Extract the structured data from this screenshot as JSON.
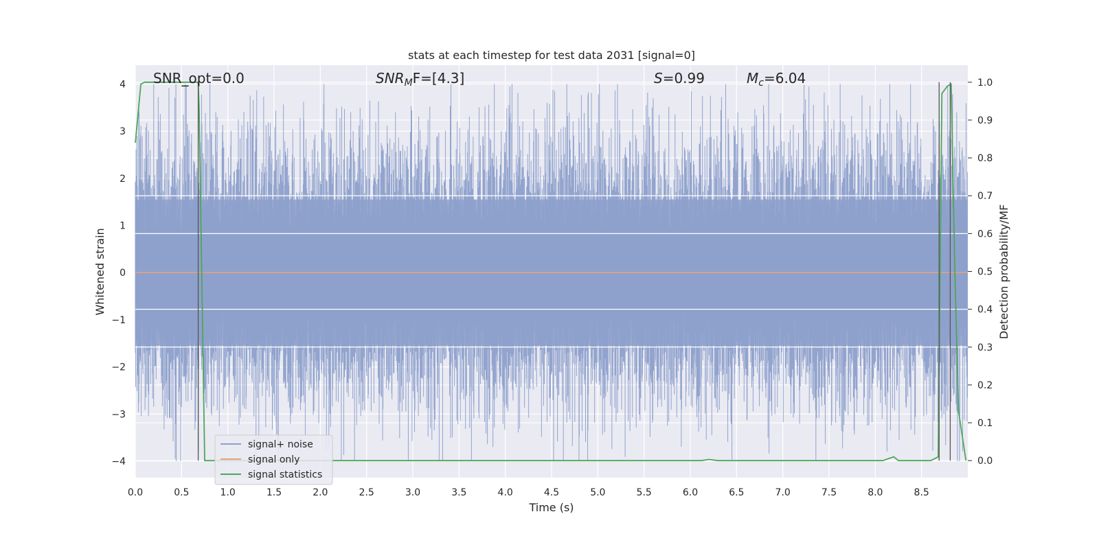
{
  "chart_data": {
    "type": "line",
    "title": "stats at each timestep for test data 2031 [signal=0]",
    "xlabel": "Time (s)",
    "ylabel": "Whitened strain",
    "y2label": "Detection probability/MF",
    "xlim": [
      0.0,
      9.0
    ],
    "ylim": [
      -4.35,
      4.4
    ],
    "y2lim": [
      -0.045,
      1.045
    ],
    "x_ticks": [
      "0.0",
      "0.5",
      "1.0",
      "1.5",
      "2.0",
      "2.5",
      "3.0",
      "3.5",
      "4.0",
      "4.5",
      "5.0",
      "5.5",
      "6.0",
      "6.5",
      "7.0",
      "7.5",
      "8.0",
      "8.5"
    ],
    "x_tick_values": [
      0.0,
      0.5,
      1.0,
      1.5,
      2.0,
      2.5,
      3.0,
      3.5,
      4.0,
      4.5,
      5.0,
      5.5,
      6.0,
      6.5,
      7.0,
      7.5,
      8.0,
      8.5
    ],
    "y_ticks": [
      "4",
      "3",
      "2",
      "1",
      "0",
      "−1",
      "−2",
      "−3",
      "−4"
    ],
    "y_tick_values": [
      4,
      3,
      2,
      1,
      0,
      -1,
      -2,
      -3,
      -4
    ],
    "y2_ticks": [
      "1.0",
      "0.9",
      "0.8",
      "0.7",
      "0.6",
      "0.5",
      "0.4",
      "0.3",
      "0.2",
      "0.1",
      "0.0"
    ],
    "y2_tick_values": [
      1.0,
      0.9,
      0.8,
      0.7,
      0.6,
      0.5,
      0.4,
      0.3,
      0.2,
      0.1,
      0.0
    ],
    "grid": true,
    "legend_position": "lower-left",
    "annotations": {
      "snr_opt": "SNR_opt=0.0",
      "snr_mf_base": "SNR",
      "snr_mf_sub": "M",
      "snr_mf_rest": "F=[4.3]",
      "s_label": "S",
      "s_rest": "=0.99",
      "mc_base": "M",
      "mc_sub": "c",
      "mc_rest": "=6.04"
    },
    "series": [
      {
        "name": "signal+ noise",
        "color": "#8da0cb",
        "axis": "left",
        "kind": "noise",
        "typical_amplitude": 1.55,
        "peak_amplitude": 4.0
      },
      {
        "name": "signal only",
        "color": "#e5a07e",
        "axis": "left",
        "x": [
          0.0,
          9.0
        ],
        "y": [
          0.0,
          0.0
        ]
      },
      {
        "name": "signal statistics",
        "color": "#4ea65a",
        "axis": "right",
        "x": [
          0.0,
          0.06,
          0.1,
          0.2,
          0.3,
          0.4,
          0.5,
          0.6,
          0.68,
          0.69,
          0.75,
          1.0,
          2.0,
          3.0,
          4.0,
          5.0,
          6.0,
          6.12,
          6.2,
          6.3,
          7.0,
          8.0,
          8.08,
          8.2,
          8.25,
          8.6,
          8.68,
          8.72,
          8.78,
          8.82,
          8.86,
          8.9,
          8.98
        ],
        "y": [
          0.84,
          0.995,
          1.0,
          1.0,
          1.0,
          1.0,
          1.0,
          1.0,
          1.0,
          0.93,
          0.0,
          0.0,
          0.0,
          0.0,
          0.0,
          0.0,
          0.0,
          0.0,
          0.003,
          0.0,
          0.0,
          0.0,
          0.0,
          0.01,
          0.0,
          0.0,
          0.01,
          0.97,
          0.99,
          0.995,
          0.5,
          0.13,
          0.0
        ]
      }
    ],
    "vertical_lines": [
      0.68,
      8.69,
      8.81
    ],
    "vertical_line_color": "#555555"
  }
}
